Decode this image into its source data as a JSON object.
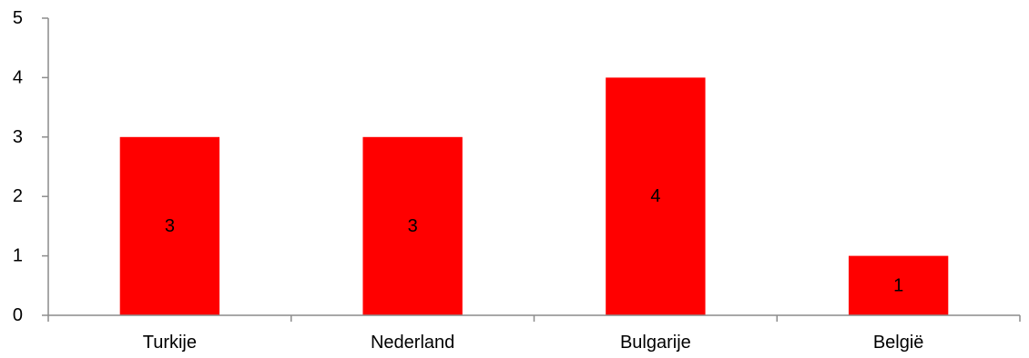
{
  "chart_data": {
    "type": "bar",
    "categories": [
      "Turkije",
      "Nederland",
      "Bulgarije",
      "België"
    ],
    "values": [
      3,
      3,
      4,
      1
    ],
    "data_labels": [
      "3",
      "3",
      "4",
      "1"
    ],
    "title": "",
    "xlabel": "",
    "ylabel": "",
    "ylim": [
      0,
      5
    ],
    "yticks": [
      0,
      1,
      2,
      3,
      4,
      5
    ],
    "grid": false,
    "legend": "none",
    "bar_color": "#ff0000",
    "axis_color": "#8c8c8c",
    "text_color": "#000000"
  }
}
